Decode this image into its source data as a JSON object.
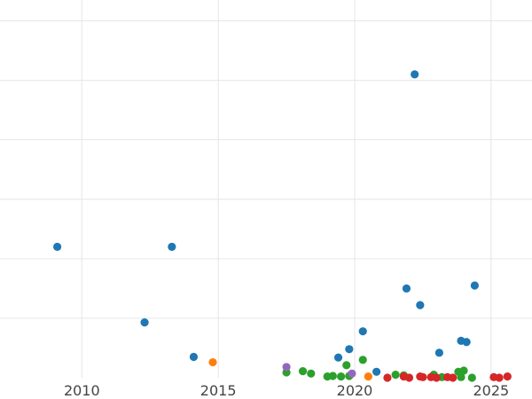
{
  "chart_data": {
    "type": "scatter",
    "title": "",
    "xlabel": "",
    "ylabel": "",
    "xlim": [
      2007.0,
      2026.5
    ],
    "ylim": [
      0,
      6.35
    ],
    "x_ticks": [
      2010,
      2015,
      2020,
      2025
    ],
    "x_tick_labels": [
      "2010",
      "2015",
      "2020",
      "2025"
    ],
    "y_gridlines": [
      1,
      2,
      3,
      4,
      5,
      6
    ],
    "grid": true,
    "legend": "none",
    "series": [
      {
        "color": "#1f77b4",
        "points": [
          {
            "x": 2009.1,
            "y": 2.2
          },
          {
            "x": 2012.3,
            "y": 0.93
          },
          {
            "x": 2013.3,
            "y": 2.2
          },
          {
            "x": 2014.1,
            "y": 0.35
          },
          {
            "x": 2019.4,
            "y": 0.34
          },
          {
            "x": 2019.8,
            "y": 0.48
          },
          {
            "x": 2020.3,
            "y": 0.78
          },
          {
            "x": 2020.8,
            "y": 0.1
          },
          {
            "x": 2021.9,
            "y": 1.5
          },
          {
            "x": 2022.2,
            "y": 5.1
          },
          {
            "x": 2022.4,
            "y": 1.22
          },
          {
            "x": 2023.1,
            "y": 0.42
          },
          {
            "x": 2023.9,
            "y": 0.62
          },
          {
            "x": 2024.1,
            "y": 0.6
          },
          {
            "x": 2024.4,
            "y": 1.55
          }
        ]
      },
      {
        "color": "#ff7f0e",
        "points": [
          {
            "x": 2014.8,
            "y": 0.26
          },
          {
            "x": 2020.5,
            "y": 0.02
          }
        ]
      },
      {
        "color": "#2ca02c",
        "points": [
          {
            "x": 2017.5,
            "y": 0.09
          },
          {
            "x": 2018.1,
            "y": 0.11
          },
          {
            "x": 2018.4,
            "y": 0.07
          },
          {
            "x": 2019.0,
            "y": 0.02
          },
          {
            "x": 2019.2,
            "y": 0.03
          },
          {
            "x": 2019.5,
            "y": 0.02
          },
          {
            "x": 2019.7,
            "y": 0.21
          },
          {
            "x": 2019.8,
            "y": 0.03
          },
          {
            "x": 2020.3,
            "y": 0.3
          },
          {
            "x": 2021.5,
            "y": 0.05
          },
          {
            "x": 2021.8,
            "y": 0.04
          },
          {
            "x": 2022.9,
            "y": 0.05
          },
          {
            "x": 2023.2,
            "y": 0.01
          },
          {
            "x": 2023.8,
            "y": 0.1
          },
          {
            "x": 2023.9,
            "y": 0.01
          },
          {
            "x": 2024.0,
            "y": 0.12
          },
          {
            "x": 2024.3,
            "y": 0.0
          }
        ]
      },
      {
        "color": "#d62728",
        "points": [
          {
            "x": 2021.2,
            "y": 0.0
          },
          {
            "x": 2021.8,
            "y": 0.02
          },
          {
            "x": 2022.0,
            "y": 0.0
          },
          {
            "x": 2022.4,
            "y": 0.02
          },
          {
            "x": 2022.5,
            "y": 0.01
          },
          {
            "x": 2022.8,
            "y": 0.01
          },
          {
            "x": 2023.0,
            "y": 0.0
          },
          {
            "x": 2023.4,
            "y": 0.01
          },
          {
            "x": 2023.6,
            "y": 0.0
          },
          {
            "x": 2025.1,
            "y": 0.01
          },
          {
            "x": 2025.3,
            "y": 0.0
          },
          {
            "x": 2025.6,
            "y": 0.02
          }
        ]
      },
      {
        "color": "#9467bd",
        "points": [
          {
            "x": 2017.5,
            "y": 0.18
          },
          {
            "x": 2019.9,
            "y": 0.07
          }
        ]
      }
    ]
  }
}
